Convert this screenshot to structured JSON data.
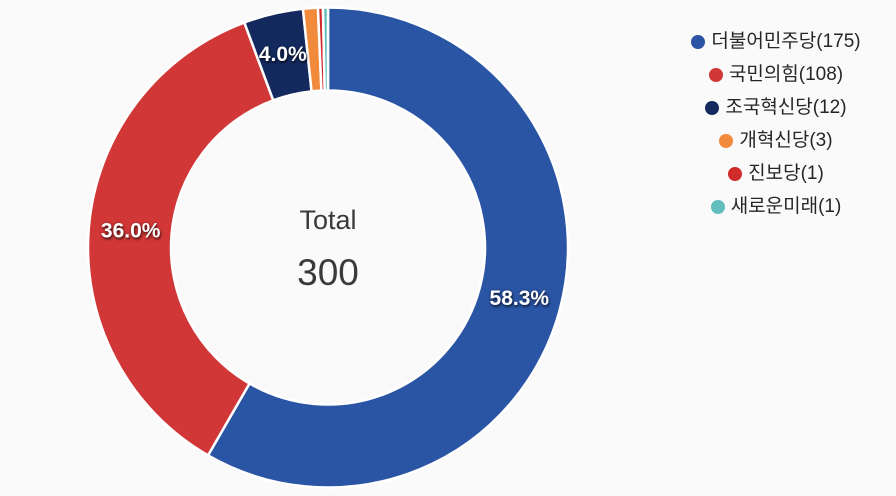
{
  "background": "#FAFAFA",
  "chart_data": {
    "type": "pie",
    "subtype": "donut",
    "title": "",
    "legend_position": "right",
    "total": 300,
    "center": {
      "label": "Total",
      "value": "300"
    },
    "series": [
      {
        "name": "더불어민주당",
        "value": 175,
        "percent_label": "58.3%",
        "color": "#2A54A4",
        "legend_label": "더불어민주당(175)"
      },
      {
        "name": "국민의힘",
        "value": 108,
        "percent_label": "36.0%",
        "color": "#D13737",
        "legend_label": "국민의힘(108)"
      },
      {
        "name": "조국혁신당",
        "value": 12,
        "percent_label": "4.0%",
        "color": "#14295E",
        "legend_label": "조국혁신당(12)"
      },
      {
        "name": "개혁신당",
        "value": 3,
        "percent_label": "",
        "color": "#F28A3C",
        "legend_label": "개혁신당(3)"
      },
      {
        "name": "진보당",
        "value": 1,
        "percent_label": "",
        "color": "#D02C2C",
        "legend_label": "진보당(1)"
      },
      {
        "name": "새로운미래",
        "value": 1,
        "percent_label": "",
        "color": "#62BDBD",
        "legend_label": "새로운미래(1)"
      }
    ]
  }
}
